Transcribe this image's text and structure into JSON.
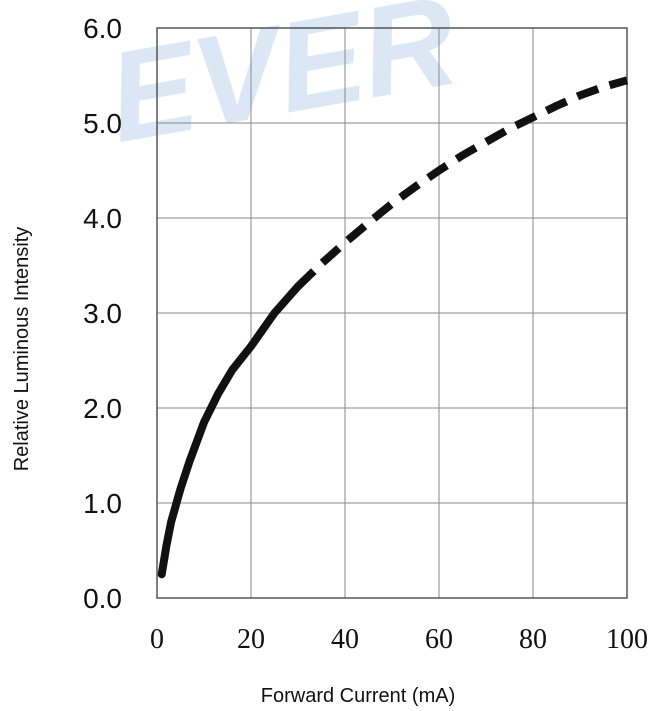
{
  "chart_data": {
    "type": "line",
    "xlabel": "Forward Current (mA)",
    "ylabel": "Relative Luminous Intensity",
    "xlim": [
      0,
      100
    ],
    "ylim": [
      0,
      6
    ],
    "x_ticks": [
      "0",
      "20",
      "40",
      "60",
      "80",
      "100"
    ],
    "y_ticks": [
      "0.0",
      "1.0",
      "2.0",
      "3.0",
      "4.0",
      "5.0",
      "6.0"
    ],
    "grid": true,
    "series": [
      {
        "solid_until_x": 30,
        "color": "#111111",
        "points": [
          [
            1,
            0.25
          ],
          [
            2,
            0.55
          ],
          [
            3,
            0.8
          ],
          [
            5,
            1.15
          ],
          [
            7,
            1.45
          ],
          [
            10,
            1.85
          ],
          [
            13,
            2.15
          ],
          [
            16,
            2.4
          ],
          [
            20,
            2.65
          ],
          [
            25,
            3.0
          ],
          [
            30,
            3.28
          ],
          [
            35,
            3.52
          ],
          [
            40,
            3.74
          ],
          [
            45,
            3.95
          ],
          [
            50,
            4.15
          ],
          [
            55,
            4.33
          ],
          [
            60,
            4.5
          ],
          [
            65,
            4.66
          ],
          [
            70,
            4.8
          ],
          [
            75,
            4.94
          ],
          [
            80,
            5.06
          ],
          [
            85,
            5.18
          ],
          [
            90,
            5.29
          ],
          [
            95,
            5.38
          ],
          [
            100,
            5.45
          ]
        ]
      }
    ]
  },
  "watermark": {
    "text": "EVER",
    "color": "#dbe7f4"
  }
}
